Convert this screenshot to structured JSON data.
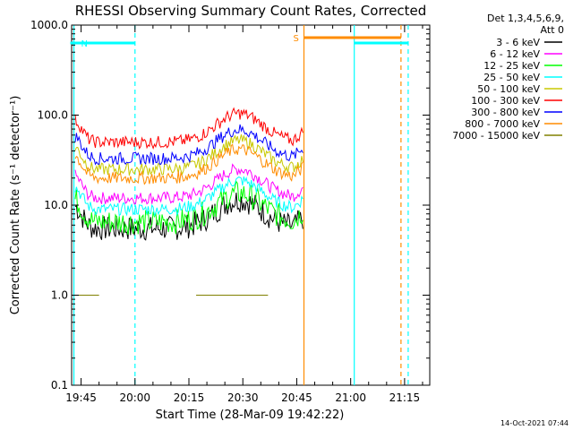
{
  "chart_data": {
    "type": "line",
    "title": "RHESSI Observing Summary Count Rates, Corrected",
    "xlabel": "Start Time (28-Mar-09 19:42:22)",
    "ylabel": "Corrected Count Rate (s⁻¹ detector⁻¹)",
    "yscale": "log",
    "ylim": [
      0.1,
      1000.0
    ],
    "xlim": [
      "19:42",
      "21:22"
    ],
    "x_ticks": [
      "19:45",
      "20:00",
      "20:15",
      "20:30",
      "20:45",
      "21:00",
      "21:15"
    ],
    "y_ticks": [
      "0.1",
      "1.0",
      "10.0",
      "100.0",
      "1000.0"
    ],
    "legend_header": [
      "Det 1,3,4,5,6,9,",
      "Att 0"
    ],
    "legend_position": "right",
    "footer": "14-Oct-2021 07:44",
    "series": [
      {
        "name": "3 - 6 keV",
        "color": "#000000",
        "base": 5.5
      },
      {
        "name": "6 - 12 keV",
        "color": "#ff00ff",
        "base": 12.0
      },
      {
        "name": "12 - 25 keV",
        "color": "#00ff00",
        "base": 6.5
      },
      {
        "name": "25 - 50 keV",
        "color": "#00ffff",
        "base": 9.0
      },
      {
        "name": "50 - 100 keV",
        "color": "#c8c800",
        "base": 25.0
      },
      {
        "name": "100 - 300 keV",
        "color": "#ff0000",
        "base": 50.0
      },
      {
        "name": "300 - 800 keV",
        "color": "#0000ff",
        "base": 33.0
      },
      {
        "name": "800 - 7000 keV",
        "color": "#ff8c00",
        "base": 20.0
      },
      {
        "name": "7000 - 15000 keV",
        "color": "#808000",
        "base": 1.0
      }
    ],
    "annotations": [
      {
        "label": "N",
        "start": "19:42",
        "end": "20:00",
        "color": "#00ffff"
      },
      {
        "label": "S",
        "start": "20:47",
        "end": "21:14",
        "color": "#ff8c00"
      },
      {
        "label": "",
        "start": "21:01",
        "end": "21:16",
        "color": "#00ffff"
      }
    ],
    "vertical_lines": [
      {
        "time": "19:43",
        "color": "#00ffff",
        "style": "solid"
      },
      {
        "time": "20:00",
        "color": "#00ffff",
        "style": "dashed"
      },
      {
        "time": "20:47",
        "color": "#ff8c00",
        "style": "solid"
      },
      {
        "time": "21:01",
        "color": "#00ffff",
        "style": "solid"
      },
      {
        "time": "21:14",
        "color": "#ff8c00",
        "style": "dashed"
      },
      {
        "time": "21:16",
        "color": "#00ffff",
        "style": "dashed"
      }
    ]
  }
}
